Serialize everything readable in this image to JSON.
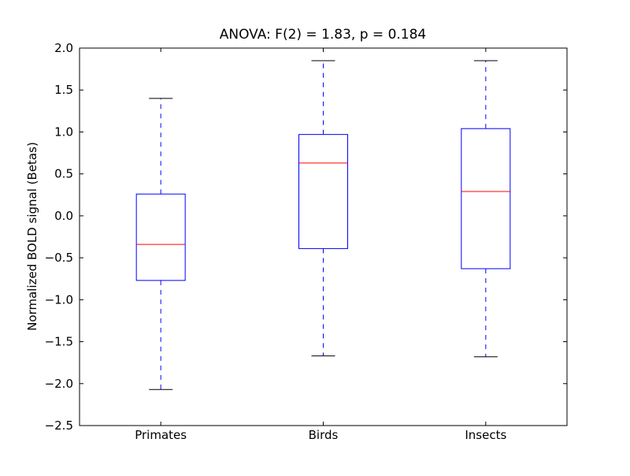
{
  "chart_data": {
    "type": "box",
    "title": "ANOVA: F(2) = 1.83, p = 0.184",
    "xlabel": "",
    "ylabel": "Normalized BOLD signal (Betas)",
    "ylim": [
      -2.5,
      2.0
    ],
    "yticks": [
      "−2.5",
      "−2.0",
      "−1.5",
      "−1.0",
      "−0.5",
      "0.0",
      "0.5",
      "1.0",
      "1.5",
      "2.0"
    ],
    "ytick_values": [
      -2.5,
      -2.0,
      -1.5,
      -1.0,
      -0.5,
      0.0,
      0.5,
      1.0,
      1.5,
      2.0
    ],
    "categories": [
      "Primates",
      "Birds",
      "Insects"
    ],
    "boxes": [
      {
        "label": "Primates",
        "whisker_low": -2.07,
        "q1": -0.77,
        "median": -0.34,
        "q3": 0.26,
        "whisker_high": 1.4
      },
      {
        "label": "Birds",
        "whisker_low": -1.67,
        "q1": -0.39,
        "median": 0.63,
        "q3": 0.97,
        "whisker_high": 1.85
      },
      {
        "label": "Insects",
        "whisker_low": -1.68,
        "q1": -0.63,
        "median": 0.29,
        "q3": 1.04,
        "whisker_high": 1.85
      }
    ],
    "grid": false,
    "colors": {
      "box": "#0000ff",
      "median": "#ff0000",
      "cap": "#000000"
    }
  }
}
